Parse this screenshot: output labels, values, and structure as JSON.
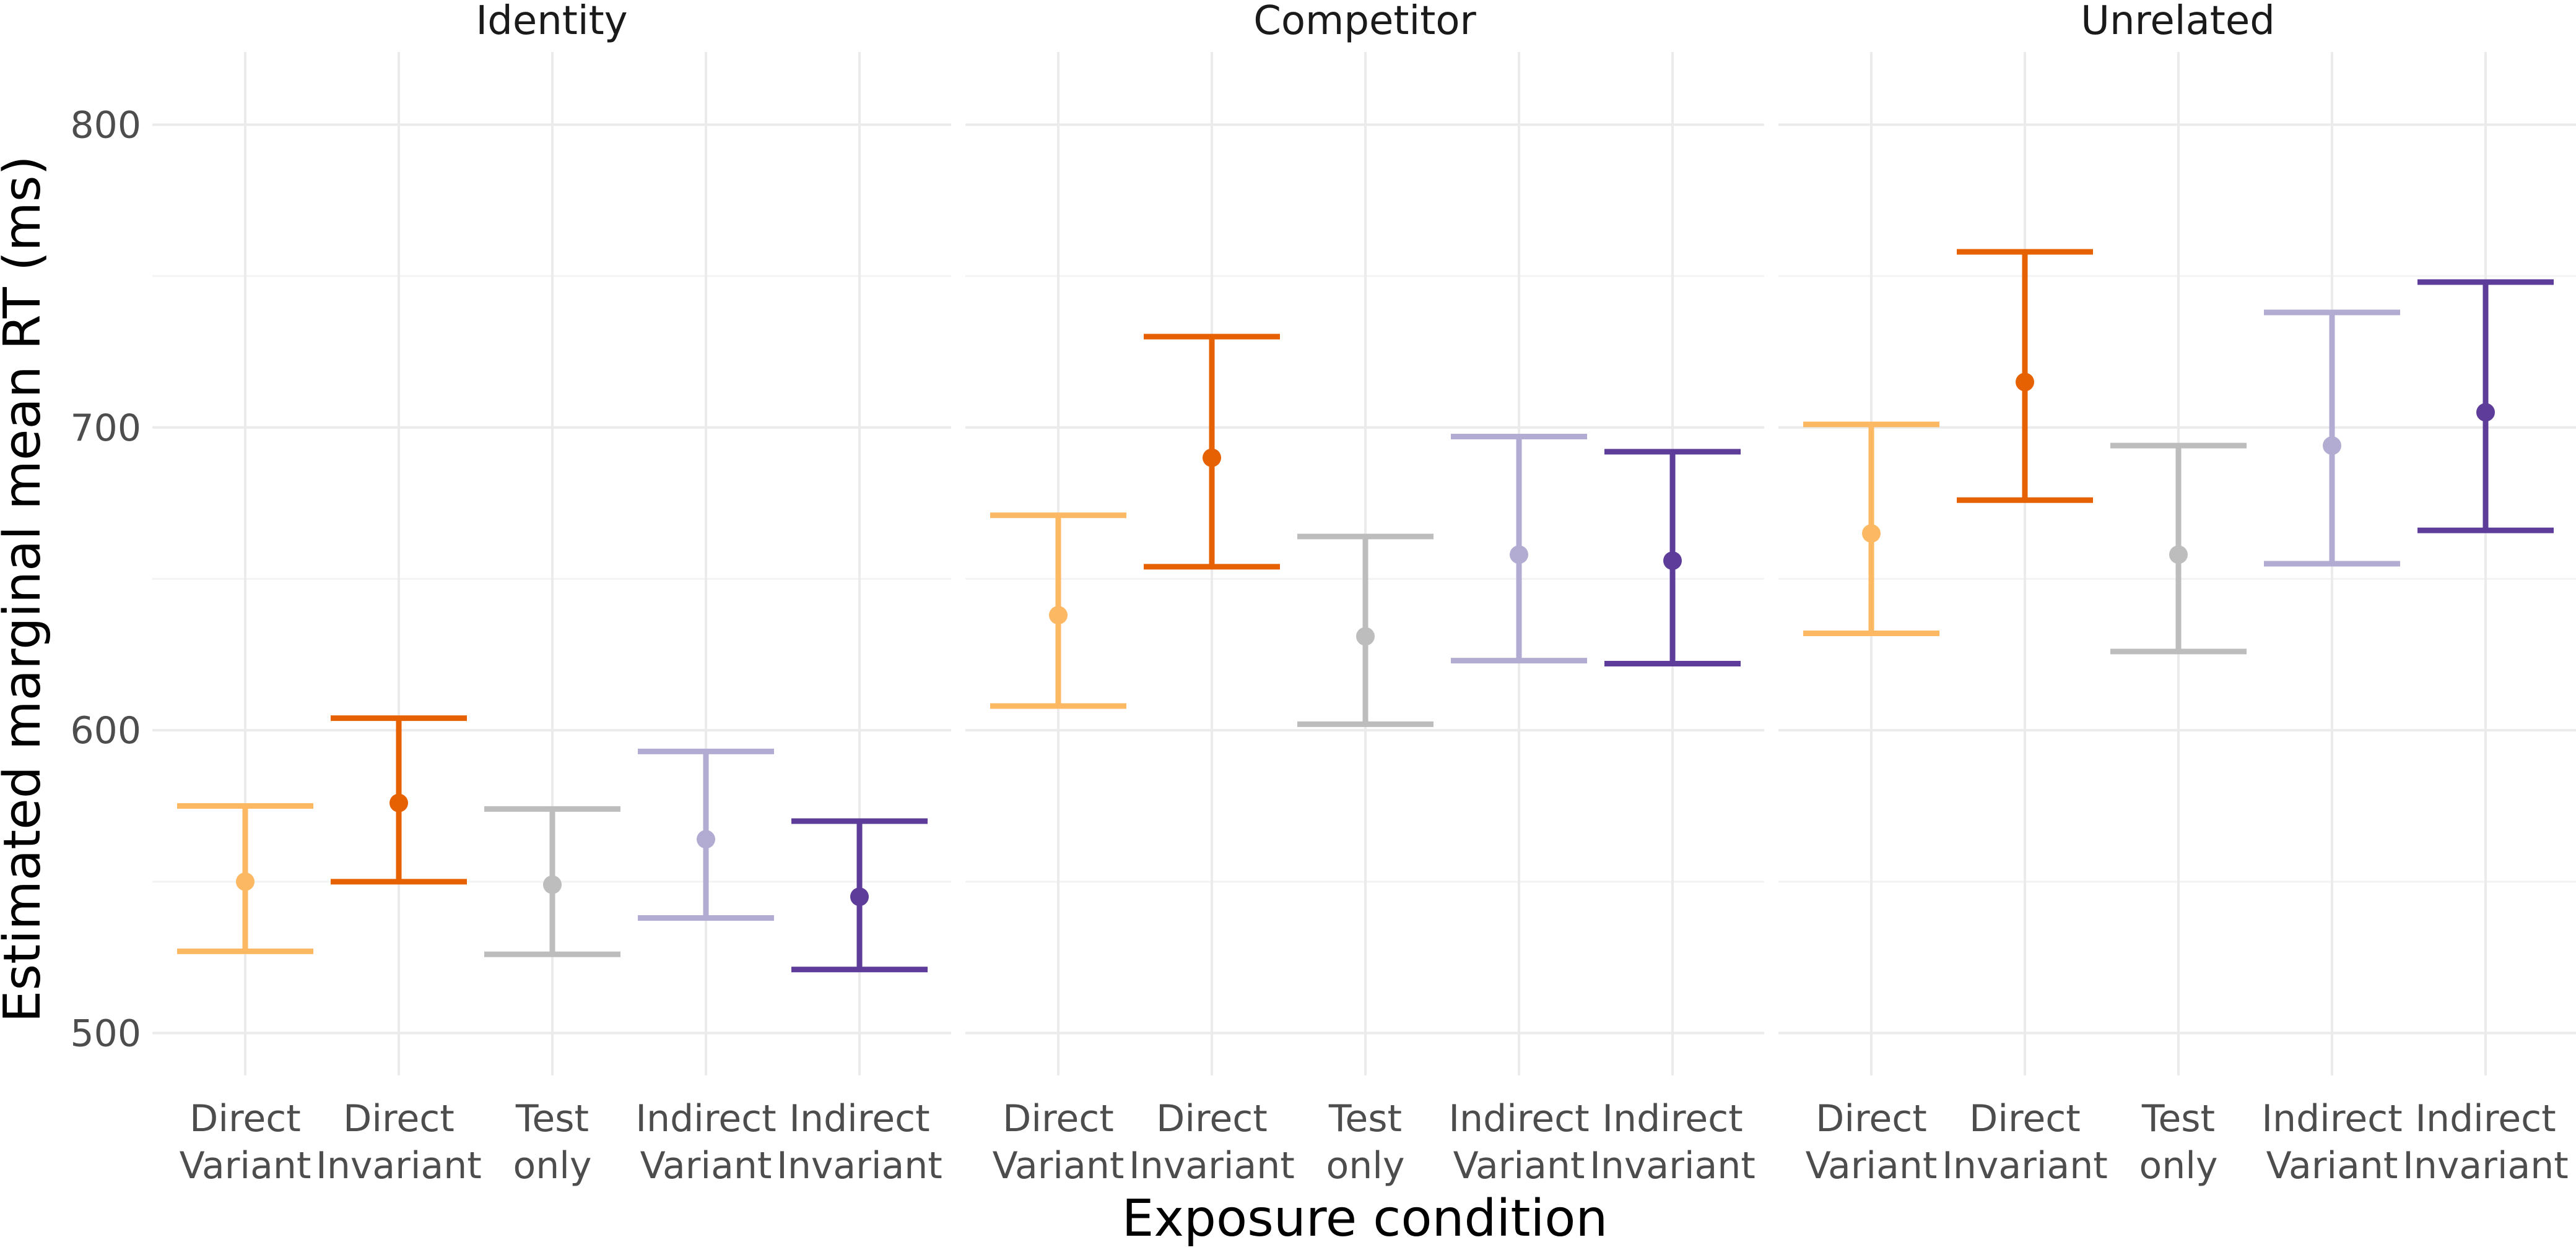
{
  "chart_data": {
    "type": "errorbar",
    "xlabel": "Exposure condition",
    "ylabel": "Estimated marginal mean RT (ms)",
    "ylim": [
      486,
      824
    ],
    "yticks": [
      500,
      600,
      700,
      800
    ],
    "grid": true,
    "legend": "none",
    "categories": [
      {
        "line1": "Direct",
        "line2": "Variant",
        "color": "#FDB863"
      },
      {
        "line1": "Direct",
        "line2": "Invariant",
        "color": "#E66101"
      },
      {
        "line1": "Test",
        "line2": "only",
        "color": "#BDBDBD"
      },
      {
        "line1": "Indirect",
        "line2": "Variant",
        "color": "#B2ABD2"
      },
      {
        "line1": "Indirect",
        "line2": "Invariant",
        "color": "#5E3C99"
      }
    ],
    "panels": [
      {
        "title": "Identity",
        "points": [
          {
            "mean": 550,
            "lower": 527,
            "upper": 575
          },
          {
            "mean": 576,
            "lower": 550,
            "upper": 604
          },
          {
            "mean": 549,
            "lower": 526,
            "upper": 574
          },
          {
            "mean": 564,
            "lower": 538,
            "upper": 593
          },
          {
            "mean": 545,
            "lower": 521,
            "upper": 570
          }
        ]
      },
      {
        "title": "Competitor",
        "points": [
          {
            "mean": 638,
            "lower": 608,
            "upper": 671
          },
          {
            "mean": 690,
            "lower": 654,
            "upper": 730
          },
          {
            "mean": 631,
            "lower": 602,
            "upper": 664
          },
          {
            "mean": 658,
            "lower": 623,
            "upper": 697
          },
          {
            "mean": 656,
            "lower": 622,
            "upper": 692
          }
        ]
      },
      {
        "title": "Unrelated",
        "points": [
          {
            "mean": 665,
            "lower": 632,
            "upper": 701
          },
          {
            "mean": 715,
            "lower": 676,
            "upper": 758
          },
          {
            "mean": 658,
            "lower": 626,
            "upper": 694
          },
          {
            "mean": 694,
            "lower": 655,
            "upper": 738
          },
          {
            "mean": 705,
            "lower": 666,
            "upper": 748
          }
        ]
      }
    ]
  }
}
